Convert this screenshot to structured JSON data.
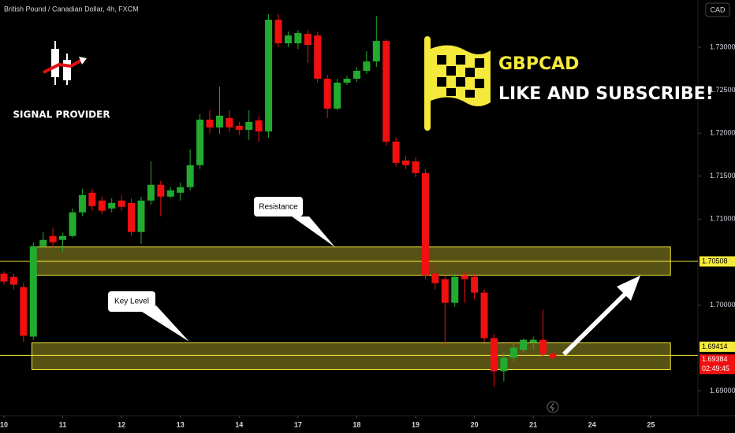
{
  "chart_data": {
    "type": "candlestick",
    "title": "British Pound / Canadian Dollar, 4h, FXCM",
    "currency": "CAD",
    "brand": "SIGNAL PROVIDER",
    "headline": "GBPCAD",
    "subheadline": "LIKE AND SUBSCRIBE!",
    "countdown": "02:49:45",
    "up_color": "#22ab2e",
    "down_color": "#f01010",
    "level_color": "#f5e93b",
    "open": [
      1.70365,
      1.70328,
      1.70209,
      1.69633,
      1.70685,
      1.70804,
      1.70758,
      1.70804,
      1.71079,
      1.71307,
      1.71216,
      1.71124,
      1.71216,
      1.71188,
      1.7085,
      1.71216,
      1.71399,
      1.71262,
      1.71307,
      1.71372,
      1.71628,
      1.72158,
      1.72067,
      1.72177,
      1.72085,
      1.72039,
      1.72149,
      1.72021,
      1.7332,
      1.73046,
      1.73046,
      1.73155,
      1.73137,
      1.72634,
      1.72286,
      1.72588,
      1.72634,
      1.72726,
      1.72835,
      1.73073,
      1.71902,
      1.71682,
      1.71673,
      1.71536,
      1.70365,
      1.70301,
      1.70026,
      1.70347,
      1.70328,
      1.70145,
      1.69615,
      1.6923,
      1.69386,
      1.69477,
      1.6956,
      1.69596,
      1.69432
    ],
    "high": [
      1.70392,
      1.70365,
      1.70255,
      1.70731,
      1.7085,
      1.70896,
      1.70841,
      1.71124,
      1.71353,
      1.71353,
      1.71262,
      1.71243,
      1.7128,
      1.71243,
      1.71262,
      1.71673,
      1.71445,
      1.71372,
      1.71427,
      1.71811,
      1.72222,
      1.72268,
      1.72543,
      1.72268,
      1.72131,
      1.72268,
      1.72195,
      1.73384,
      1.73384,
      1.73183,
      1.73201,
      1.73201,
      1.73183,
      1.7268,
      1.72634,
      1.72671,
      1.72771,
      1.72954,
      1.73366,
      1.73092,
      1.71948,
      1.71737,
      1.71719,
      1.71582,
      1.70484,
      1.70347,
      1.70365,
      1.70392,
      1.70365,
      1.70182,
      1.6966,
      1.6945,
      1.69569,
      1.69615,
      1.69633,
      1.69944,
      1.6945
    ],
    "low": [
      1.70237,
      1.70182,
      1.69569,
      1.69596,
      1.70658,
      1.70667,
      1.70621,
      1.70786,
      1.71033,
      1.71097,
      1.7106,
      1.71079,
      1.71097,
      1.70804,
      1.70713,
      1.7117,
      1.71033,
      1.71243,
      1.71216,
      1.71335,
      1.71582,
      1.71994,
      1.71994,
      1.72012,
      1.71975,
      1.7192,
      1.71902,
      1.71948,
      1.73,
      1.73,
      1.72982,
      1.72817,
      1.72588,
      1.72177,
      1.72268,
      1.72561,
      1.72597,
      1.72689,
      1.72771,
      1.71856,
      1.71609,
      1.71582,
      1.7149,
      1.70301,
      1.70182,
      1.69523,
      1.69981,
      1.70026,
      1.70072,
      1.69569,
      1.69047,
      1.69111,
      1.6934,
      1.6945,
      1.69477,
      1.69386,
      1.69368
    ],
    "close": [
      1.70273,
      1.70237,
      1.69642,
      1.70685,
      1.70758,
      1.70731,
      1.70804,
      1.71079,
      1.7128,
      1.71152,
      1.71097,
      1.71188,
      1.71143,
      1.7085,
      1.71216,
      1.71399,
      1.71262,
      1.71335,
      1.71372,
      1.71628,
      1.72158,
      1.72067,
      1.72204,
      1.72067,
      1.72039,
      1.72131,
      1.72021,
      1.7332,
      1.73046,
      1.73137,
      1.73165,
      1.73027,
      1.72634,
      1.72286,
      1.72588,
      1.72634,
      1.72726,
      1.72835,
      1.73073,
      1.71902,
      1.71655,
      1.71628,
      1.71536,
      1.70347,
      1.70255,
      1.70026,
      1.70328,
      1.70301,
      1.70145,
      1.69615,
      1.6923,
      1.69386,
      1.69505,
      1.69596,
      1.69596,
      1.69432,
      1.69384
    ],
    "zones": [
      {
        "name": "Resistance",
        "range": [
          1.70347,
          1.70676
        ]
      },
      {
        "name": "Key Level",
        "range": [
          1.69249,
          1.6956
        ]
      }
    ],
    "levels": [
      1.70508,
      1.69414
    ],
    "xlim": [
      -0.4,
      70.8
    ],
    "xticks": [
      {
        "value": 0,
        "label": "10"
      },
      {
        "value": 6,
        "label": "11"
      },
      {
        "value": 12,
        "label": "12"
      },
      {
        "value": 18,
        "label": "13"
      },
      {
        "value": 24,
        "label": "14"
      },
      {
        "value": 30,
        "label": "17"
      },
      {
        "value": 36,
        "label": "18"
      },
      {
        "value": 42,
        "label": "19"
      },
      {
        "value": 48,
        "label": "20"
      },
      {
        "value": 54,
        "label": "21"
      },
      {
        "value": 60,
        "label": "24"
      },
      {
        "value": 66,
        "label": "25"
      }
    ],
    "ylim": [
      1.6874,
      1.7355
    ],
    "yticks": [
      {
        "value": 1.73,
        "label": "1.73000"
      },
      {
        "value": 1.725,
        "label": "1.72500"
      },
      {
        "value": 1.72,
        "label": "1.72000"
      },
      {
        "value": 1.715,
        "label": "1.71500"
      },
      {
        "value": 1.71,
        "label": "1.71000"
      },
      {
        "value": 1.7,
        "label": "1.70000"
      },
      {
        "value": 1.69,
        "label": "1.69000"
      }
    ]
  }
}
